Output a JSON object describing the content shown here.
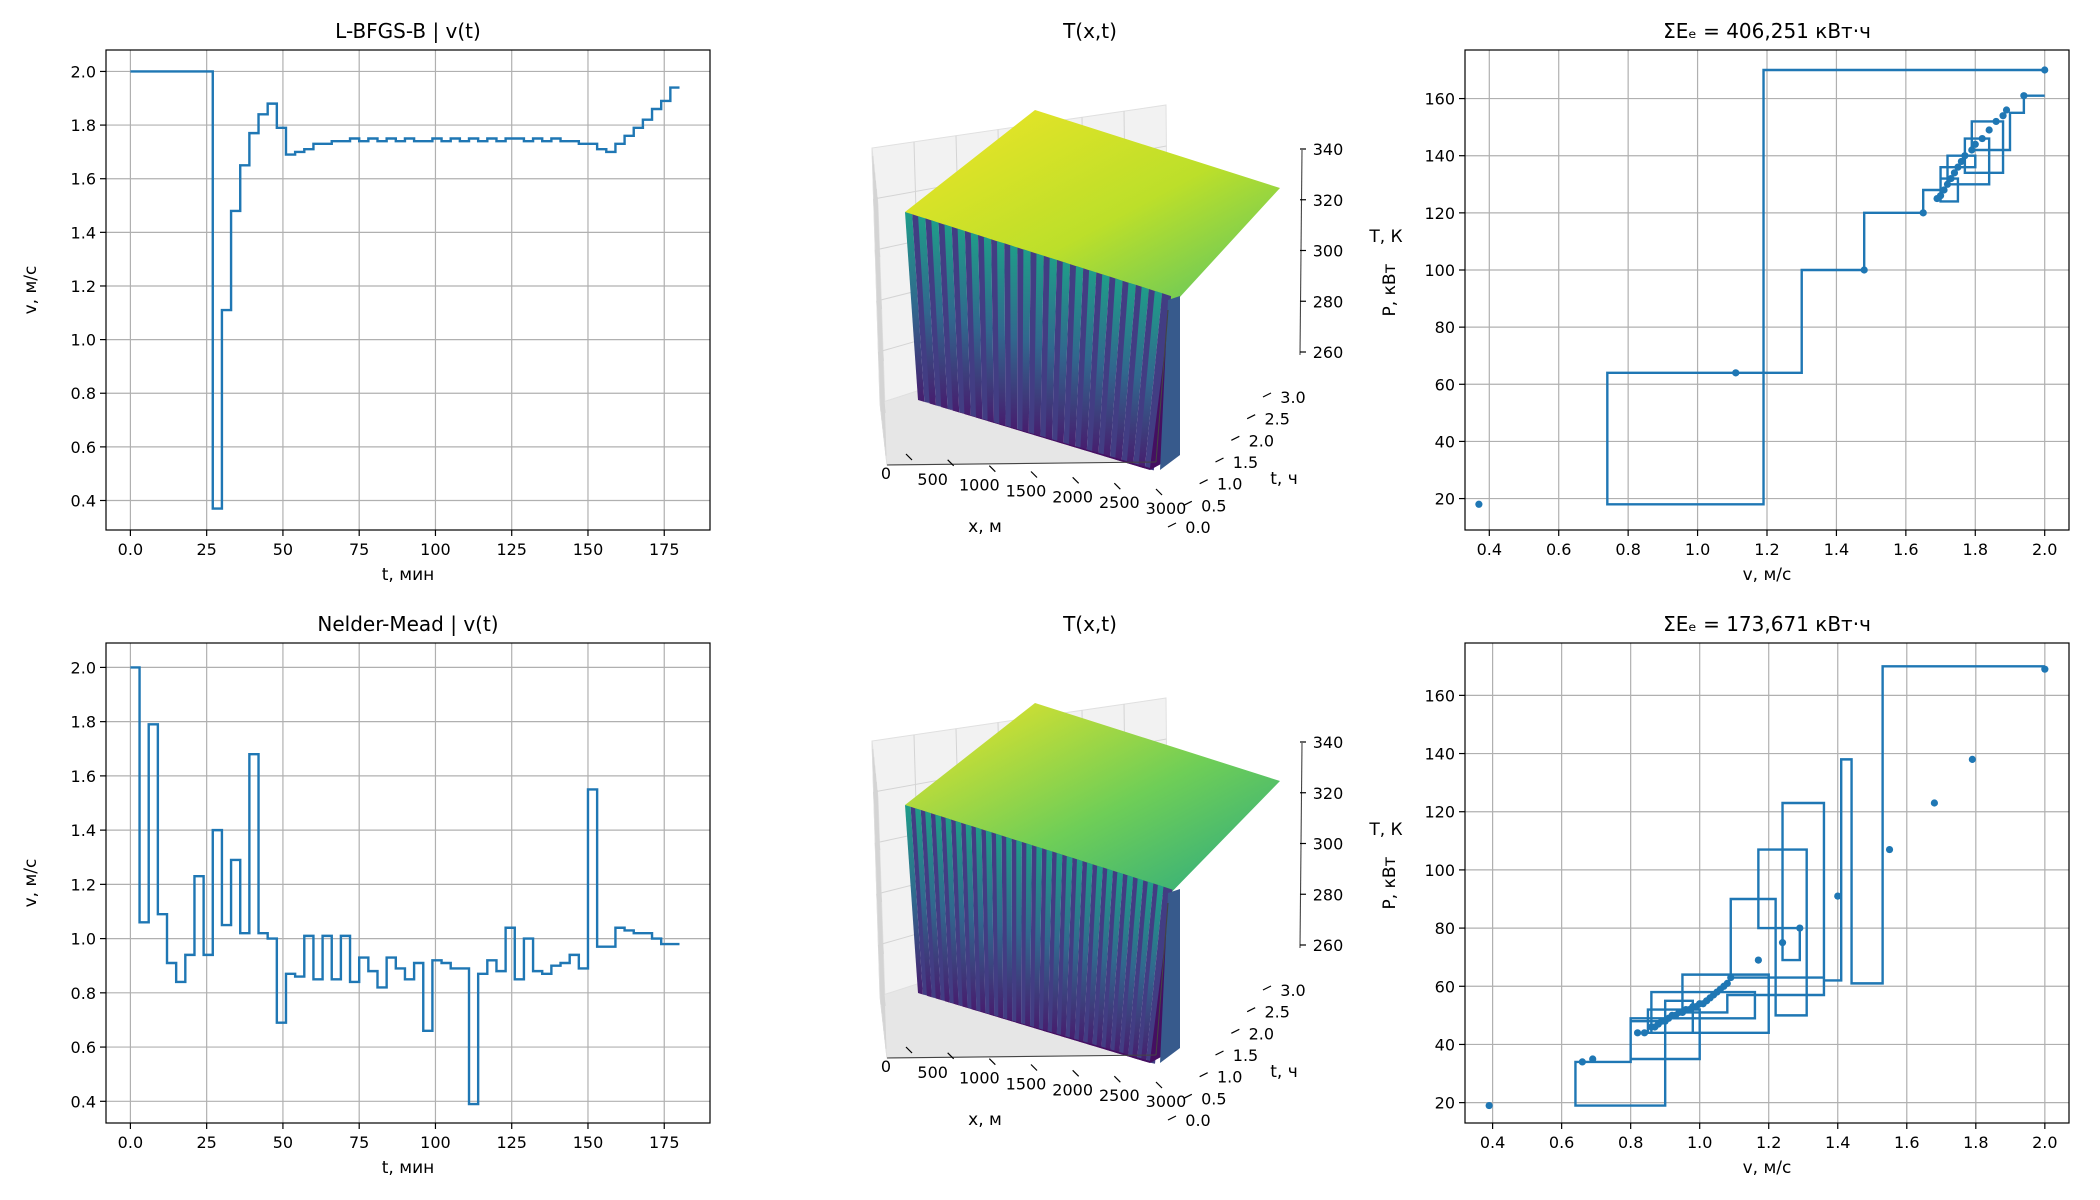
{
  "figure": {
    "width": 2100,
    "height": 1200
  },
  "chart_data": [
    {
      "id": "ts1",
      "type": "line",
      "step": true,
      "title": "L-BFGS-B  |  v(t)",
      "xlabel": "t, мин",
      "ylabel": "v, м/с",
      "xlim": [
        -8,
        190
      ],
      "ylim": [
        0.29,
        2.08
      ],
      "xticks": [
        0,
        25,
        50,
        75,
        100,
        125,
        150,
        175
      ],
      "yticks": [
        0.4,
        0.6,
        0.8,
        1.0,
        1.2,
        1.4,
        1.6,
        1.8,
        2.0
      ],
      "grid": true,
      "x": [
        0,
        3,
        6,
        9,
        12,
        15,
        18,
        21,
        24,
        27,
        30,
        33,
        36,
        39,
        42,
        45,
        48,
        51,
        54,
        57,
        60,
        63,
        66,
        69,
        72,
        75,
        78,
        81,
        84,
        87,
        90,
        93,
        96,
        99,
        102,
        105,
        108,
        111,
        114,
        117,
        120,
        123,
        126,
        129,
        132,
        135,
        138,
        141,
        144,
        147,
        150,
        153,
        156,
        159,
        162,
        165,
        168,
        171,
        174,
        177,
        180
      ],
      "values": [
        2.0,
        2.0,
        2.0,
        2.0,
        2.0,
        2.0,
        2.0,
        2.0,
        2.0,
        0.37,
        1.11,
        1.48,
        1.65,
        1.77,
        1.84,
        1.88,
        1.79,
        1.69,
        1.7,
        1.71,
        1.73,
        1.73,
        1.74,
        1.74,
        1.75,
        1.74,
        1.75,
        1.74,
        1.75,
        1.74,
        1.75,
        1.74,
        1.74,
        1.75,
        1.74,
        1.75,
        1.74,
        1.75,
        1.74,
        1.75,
        1.74,
        1.75,
        1.75,
        1.74,
        1.75,
        1.74,
        1.75,
        1.74,
        1.74,
        1.73,
        1.73,
        1.71,
        1.7,
        1.73,
        1.76,
        1.79,
        1.82,
        1.86,
        1.89,
        1.94,
        1.94
      ]
    },
    {
      "id": "surf1",
      "type": "surface3d",
      "title": "T(x,t)",
      "xlabel": "x, м",
      "ylabel": "t, ч",
      "zlabel": "T, К",
      "xticks": [
        "0",
        "500",
        "1000",
        "1500",
        "2000",
        "2500",
        "3000"
      ],
      "yticks": [
        "0.0",
        "0.5",
        "1.0",
        "1.5",
        "2.0",
        "2.5",
        "3.0"
      ],
      "zticks": [
        "260",
        "280",
        "300",
        "320",
        "340"
      ],
      "colormap": "viridis",
      "ribbons": 20,
      "rise": 0.0
    },
    {
      "id": "pv1",
      "type": "line",
      "title": "ΣEₑ = 406,251 кВт·ч",
      "xlabel": "v, м/с",
      "ylabel": "P, кВт",
      "xlim": [
        0.33,
        2.07
      ],
      "ylim": [
        9,
        177
      ],
      "xticks": [
        0.4,
        0.6,
        0.8,
        1.0,
        1.2,
        1.4,
        1.6,
        1.8,
        2.0
      ],
      "yticks": [
        20,
        40,
        60,
        80,
        100,
        120,
        140,
        160
      ],
      "grid": true,
      "path_x": [
        2.0,
        1.19,
        1.19,
        0.74,
        0.74,
        1.19,
        1.19,
        1.3,
        1.3,
        1.48,
        1.48,
        1.65,
        1.65,
        1.7,
        1.7,
        1.75,
        1.75,
        1.7,
        1.7,
        1.8,
        1.8,
        1.72,
        1.72,
        1.84,
        1.84,
        1.77,
        1.77,
        1.88,
        1.88,
        1.79,
        1.79,
        1.9,
        1.9,
        1.94,
        1.94,
        2.0
      ],
      "path_y": [
        170,
        170,
        18,
        18,
        64,
        64,
        64,
        64,
        100,
        100,
        120,
        120,
        128,
        128,
        132,
        132,
        124,
        124,
        136,
        136,
        140,
        140,
        130,
        130,
        146,
        146,
        134,
        134,
        152,
        152,
        142,
        142,
        155,
        155,
        161,
        161
      ],
      "points_x": [
        2.0,
        0.37,
        1.11,
        1.48,
        1.65,
        1.69,
        1.7,
        1.71,
        1.72,
        1.73,
        1.74,
        1.75,
        1.76,
        1.77,
        1.79,
        1.8,
        1.82,
        1.84,
        1.86,
        1.88,
        1.89,
        1.94
      ],
      "points_y": [
        170,
        18,
        64,
        100,
        120,
        125,
        126,
        128,
        130,
        132,
        134,
        136,
        138,
        140,
        142,
        144,
        146,
        149,
        152,
        154,
        156,
        161
      ]
    },
    {
      "id": "ts2",
      "type": "line",
      "step": true,
      "title": "Nelder-Mead  |  v(t)",
      "xlabel": "t, мин",
      "ylabel": "v, м/с",
      "xlim": [
        -8,
        190
      ],
      "ylim": [
        0.32,
        2.09
      ],
      "xticks": [
        0,
        25,
        50,
        75,
        100,
        125,
        150,
        175
      ],
      "yticks": [
        0.4,
        0.6,
        0.8,
        1.0,
        1.2,
        1.4,
        1.6,
        1.8,
        2.0
      ],
      "grid": true,
      "x": [
        0,
        3,
        6,
        9,
        12,
        15,
        18,
        21,
        24,
        27,
        30,
        33,
        36,
        39,
        42,
        45,
        48,
        51,
        54,
        57,
        60,
        63,
        66,
        69,
        72,
        75,
        78,
        81,
        84,
        87,
        90,
        93,
        96,
        99,
        102,
        105,
        108,
        111,
        114,
        117,
        120,
        123,
        126,
        129,
        132,
        135,
        138,
        141,
        144,
        147,
        150,
        153,
        156,
        159,
        162,
        165,
        168,
        171,
        174,
        177,
        180
      ],
      "values": [
        2.0,
        1.06,
        1.79,
        1.09,
        0.91,
        0.84,
        0.94,
        1.23,
        0.94,
        1.4,
        1.05,
        1.29,
        1.02,
        1.68,
        1.02,
        1.0,
        0.69,
        0.87,
        0.86,
        1.01,
        0.85,
        1.01,
        0.85,
        1.01,
        0.84,
        0.93,
        0.88,
        0.82,
        0.93,
        0.89,
        0.85,
        0.91,
        0.66,
        0.92,
        0.91,
        0.89,
        0.89,
        0.39,
        0.87,
        0.92,
        0.88,
        1.04,
        0.85,
        1.0,
        0.88,
        0.87,
        0.9,
        0.91,
        0.94,
        0.89,
        1.55,
        0.97,
        0.97,
        1.04,
        1.03,
        1.02,
        1.02,
        1.0,
        0.98,
        0.98,
        0.98
      ]
    },
    {
      "id": "surf2",
      "type": "surface3d",
      "title": "T(x,t)",
      "xlabel": "x, м",
      "ylabel": "t, ч",
      "zlabel": "T, К",
      "xticks": [
        "0",
        "500",
        "1000",
        "1500",
        "2000",
        "2500",
        "3000"
      ],
      "yticks": [
        "0.0",
        "0.5",
        "1.0",
        "1.5",
        "2.0",
        "2.5",
        "3.0"
      ],
      "zticks": [
        "260",
        "280",
        "300",
        "320",
        "340"
      ],
      "colormap": "viridis",
      "ribbons": 26,
      "rise": 0.12
    },
    {
      "id": "pv2",
      "type": "line",
      "title": "ΣEₑ = 173,671 кВт·ч",
      "xlabel": "v, м/с",
      "ylabel": "P, кВт",
      "xlim": [
        0.32,
        2.07
      ],
      "ylim": [
        13,
        178
      ],
      "xticks": [
        0.4,
        0.6,
        0.8,
        1.0,
        1.2,
        1.4,
        1.6,
        1.8,
        2.0
      ],
      "yticks": [
        20,
        40,
        60,
        80,
        100,
        120,
        140,
        160
      ],
      "grid": true,
      "path_x": [
        2.0,
        1.53,
        1.53,
        1.44,
        1.44,
        1.41,
        1.41,
        1.36,
        1.36,
        1.24,
        1.24,
        1.29,
        1.29,
        1.17,
        1.17,
        1.31,
        1.31,
        1.22,
        1.22,
        1.09,
        1.09,
        1.36,
        1.36,
        1.08,
        1.08,
        0.95,
        0.95,
        1.2,
        1.2,
        0.86,
        0.86,
        1.16,
        1.16,
        0.8,
        0.8,
        0.64,
        0.64,
        0.9,
        0.9,
        0.8,
        0.8,
        1.0,
        1.0,
        0.85,
        0.85,
        0.98,
        0.98,
        0.9,
        0.9
      ],
      "path_y": [
        170,
        170,
        61,
        61,
        138,
        138,
        62,
        62,
        123,
        123,
        69,
        69,
        80,
        80,
        107,
        107,
        50,
        50,
        90,
        90,
        63,
        63,
        57,
        57,
        51,
        51,
        64,
        64,
        44,
        44,
        58,
        58,
        49,
        49,
        34,
        34,
        19,
        19,
        48,
        48,
        35,
        35,
        52,
        52,
        44,
        44,
        55,
        55,
        46
      ],
      "points_x": [
        0.39,
        0.66,
        0.69,
        0.82,
        0.84,
        0.86,
        0.87,
        0.88,
        0.89,
        0.9,
        0.91,
        0.92,
        0.93,
        0.94,
        0.95,
        0.96,
        0.97,
        0.98,
        0.99,
        1.0,
        1.01,
        1.02,
        1.03,
        1.04,
        1.05,
        1.06,
        1.07,
        1.08,
        1.09,
        1.17,
        1.24,
        1.29,
        1.4,
        1.55,
        1.68,
        1.79,
        2.0
      ],
      "points_y": [
        19,
        34,
        35,
        44,
        44,
        46,
        46,
        47,
        48,
        48,
        49,
        50,
        50,
        51,
        51,
        52,
        52,
        53,
        53,
        54,
        54,
        55,
        56,
        57,
        58,
        59,
        60,
        61,
        63,
        69,
        75,
        80,
        91,
        107,
        123,
        138,
        169
      ]
    }
  ]
}
